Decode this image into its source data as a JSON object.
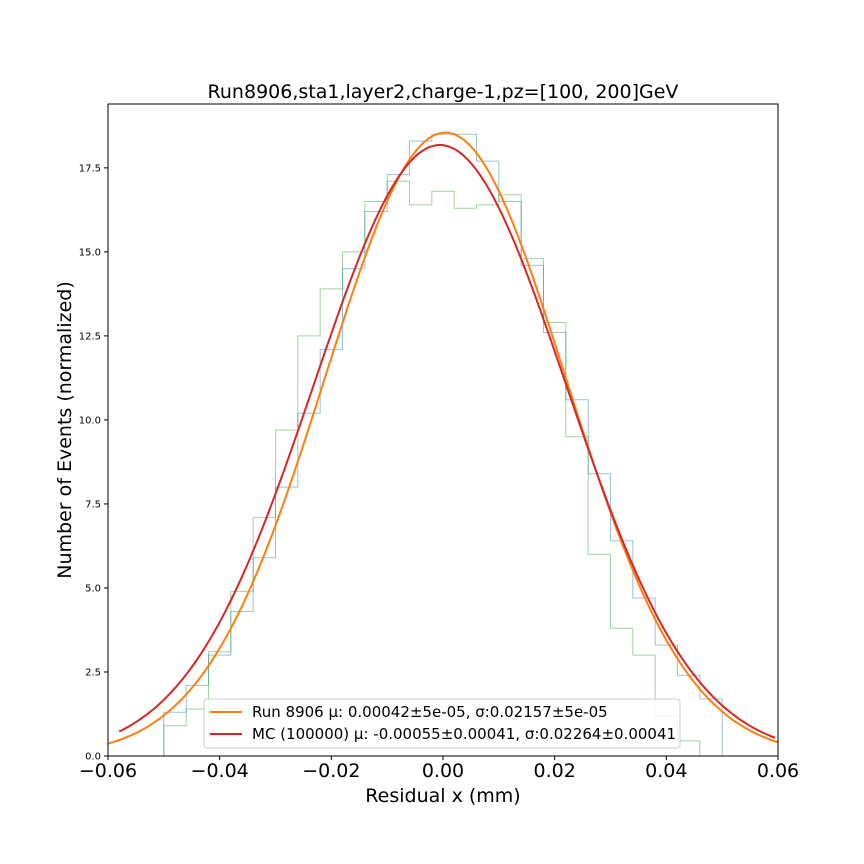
{
  "chart_data": {
    "type": "line",
    "title": "Run8906,sta1,layer2,charge-1,pz=[100, 200]GeV",
    "xlabel": "Residual x (mm)",
    "ylabel": "Number of Events (normalized)",
    "xlim": [
      -0.06,
      0.06
    ],
    "ylim": [
      0,
      19.4
    ],
    "xticks": [
      -0.06,
      -0.04,
      -0.02,
      0.0,
      0.02,
      0.04,
      0.06
    ],
    "xtick_labels": [
      "−0.06",
      "−0.04",
      "−0.02",
      "0.00",
      "0.02",
      "0.04",
      "0.06"
    ],
    "yticks": [
      0.0,
      2.5,
      5.0,
      7.5,
      10.0,
      12.5,
      15.0,
      17.5
    ],
    "ytick_labels": [
      "0.0",
      "2.5",
      "5.0",
      "7.5",
      "10.0",
      "12.5",
      "15.0",
      "17.5"
    ],
    "grid": false,
    "legend_position": "bottom-center",
    "bin_edges": [
      -0.05,
      -0.046,
      -0.042,
      -0.038,
      -0.034,
      -0.03,
      -0.026,
      -0.022,
      -0.018,
      -0.014,
      -0.01,
      -0.006,
      -0.002,
      0.002,
      0.006,
      0.01,
      0.014,
      0.018,
      0.022,
      0.026,
      0.03,
      0.034,
      0.038,
      0.042,
      0.046,
      0.05
    ],
    "histograms": [
      {
        "color": "#1f77b4",
        "values": [
          1.3,
          2.1,
          3.0,
          4.3,
          5.9,
          8.0,
          10.2,
          12.1,
          14.5,
          16.2,
          17.3,
          18.3,
          18.5,
          18.5,
          17.7,
          16.5,
          14.6,
          12.6,
          10.6,
          8.4,
          6.4,
          4.7,
          3.3,
          2.4,
          1.7
        ]
      },
      {
        "color": "#2ca02c",
        "values": [
          0.9,
          1.4,
          3.1,
          4.9,
          7.1,
          9.7,
          12.5,
          13.9,
          15.0,
          16.5,
          17.1,
          16.4,
          16.8,
          16.3,
          16.4,
          16.7,
          14.8,
          12.9,
          9.5,
          6.0,
          3.8,
          3.0,
          1.2,
          0.45,
          0.0
        ]
      }
    ],
    "series": [
      {
        "name": "Run 8906 μ: 0.00042±5e-05, σ:0.02157±5e-05",
        "color": "#ff7f0e",
        "kind": "gaussian",
        "mu": 0.00042,
        "sigma": 0.02157,
        "peak": 18.55,
        "x_range": [
          -0.06,
          0.06
        ]
      },
      {
        "name": "MC (100000) μ: -0.00055±0.00041, σ:0.02264±0.00041",
        "color": "#d62728",
        "kind": "gaussian",
        "mu": -0.00055,
        "sigma": 0.02264,
        "peak": 18.18,
        "x_range": [
          -0.058,
          0.0595
        ]
      }
    ]
  }
}
